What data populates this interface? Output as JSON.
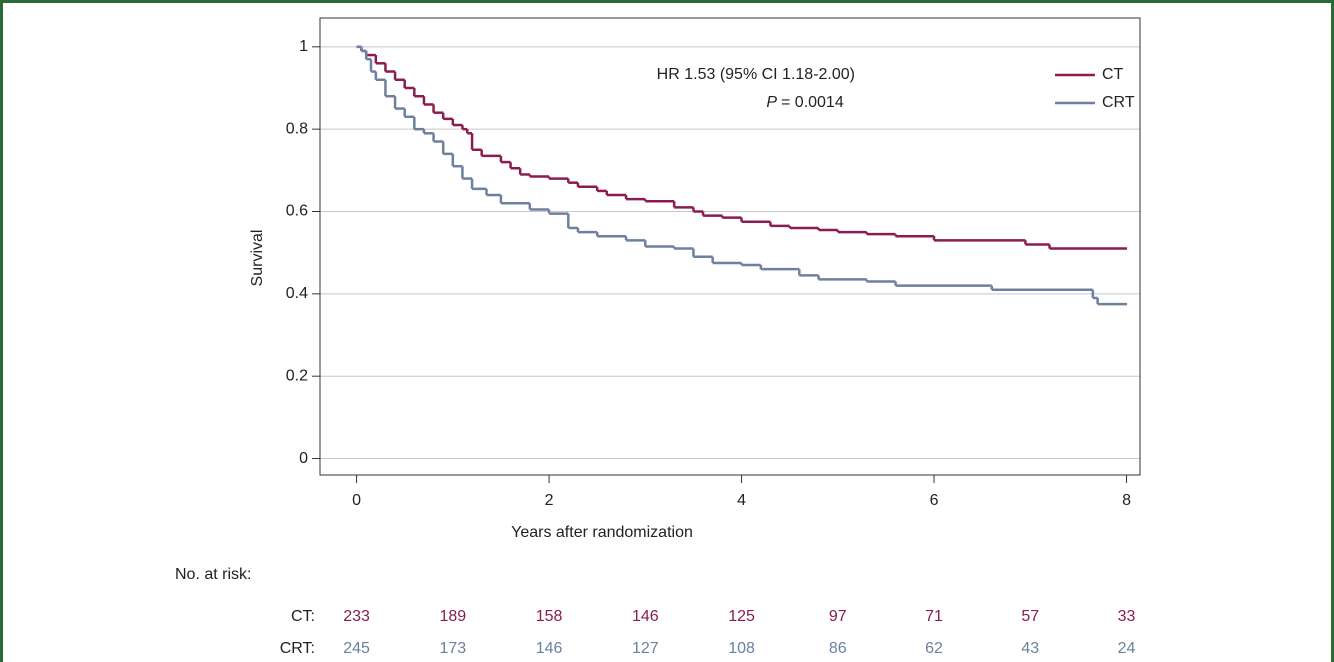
{
  "chart_data": {
    "type": "step",
    "x_label": "Years after randomization",
    "y_label": "Survival",
    "annotations": [
      "HR 1.53 (95% CI 1.18-2.00)",
      "P",
      "= 0.0014"
    ],
    "xlim": [
      -0.38,
      8.14
    ],
    "xticks": [
      0,
      2,
      4,
      6,
      8
    ],
    "ylim": [
      -0.04,
      1.07
    ],
    "yticks": [
      0,
      0.2,
      0.4,
      0.6,
      0.8,
      1
    ],
    "grid": true,
    "legend": "top-right",
    "series": [
      {
        "name": "CT",
        "color": "#8a1c50",
        "x": [
          0,
          0.05,
          0.1,
          0.2,
          0.3,
          0.4,
          0.5,
          0.6,
          0.7,
          0.8,
          0.9,
          1.0,
          1.1,
          1.15,
          1.2,
          1.3,
          1.5,
          1.6,
          1.7,
          1.8,
          2.0,
          2.2,
          2.3,
          2.5,
          2.6,
          2.8,
          3.0,
          3.3,
          3.5,
          3.6,
          3.8,
          4.0,
          4.3,
          4.5,
          4.8,
          5.0,
          5.3,
          5.6,
          6.0,
          6.95,
          7.2,
          8.0
        ],
        "values": [
          1.0,
          0.99,
          0.98,
          0.96,
          0.94,
          0.92,
          0.9,
          0.88,
          0.86,
          0.84,
          0.825,
          0.81,
          0.8,
          0.79,
          0.75,
          0.735,
          0.72,
          0.705,
          0.69,
          0.685,
          0.68,
          0.67,
          0.66,
          0.65,
          0.64,
          0.63,
          0.625,
          0.61,
          0.6,
          0.59,
          0.585,
          0.575,
          0.565,
          0.56,
          0.555,
          0.55,
          0.545,
          0.54,
          0.53,
          0.52,
          0.51,
          0.51
        ]
      },
      {
        "name": "CRT",
        "color": "#6d80a0",
        "x": [
          0,
          0.05,
          0.1,
          0.15,
          0.2,
          0.3,
          0.4,
          0.5,
          0.6,
          0.7,
          0.8,
          0.9,
          1.0,
          1.1,
          1.2,
          1.35,
          1.5,
          1.8,
          2.0,
          2.2,
          2.3,
          2.5,
          2.8,
          3.0,
          3.3,
          3.5,
          3.7,
          4.0,
          4.2,
          4.6,
          4.8,
          5.3,
          5.6,
          6.6,
          7.65,
          7.7,
          8.0
        ],
        "values": [
          1.0,
          0.99,
          0.97,
          0.94,
          0.92,
          0.88,
          0.85,
          0.83,
          0.8,
          0.79,
          0.77,
          0.74,
          0.71,
          0.68,
          0.655,
          0.64,
          0.62,
          0.605,
          0.595,
          0.56,
          0.55,
          0.54,
          0.53,
          0.515,
          0.51,
          0.49,
          0.475,
          0.47,
          0.46,
          0.445,
          0.435,
          0.43,
          0.42,
          0.41,
          0.39,
          0.375,
          0.375
        ]
      }
    ],
    "at_risk": {
      "label": "No. at risk:",
      "times": [
        0,
        1,
        2,
        3,
        4,
        5,
        6,
        7,
        8
      ],
      "rows": [
        {
          "label": "CT:",
          "values": [
            233,
            189,
            158,
            146,
            125,
            97,
            71,
            57,
            33
          ]
        },
        {
          "label": "CRT:",
          "values": [
            245,
            173,
            146,
            127,
            108,
            86,
            62,
            43,
            24
          ]
        }
      ]
    }
  }
}
